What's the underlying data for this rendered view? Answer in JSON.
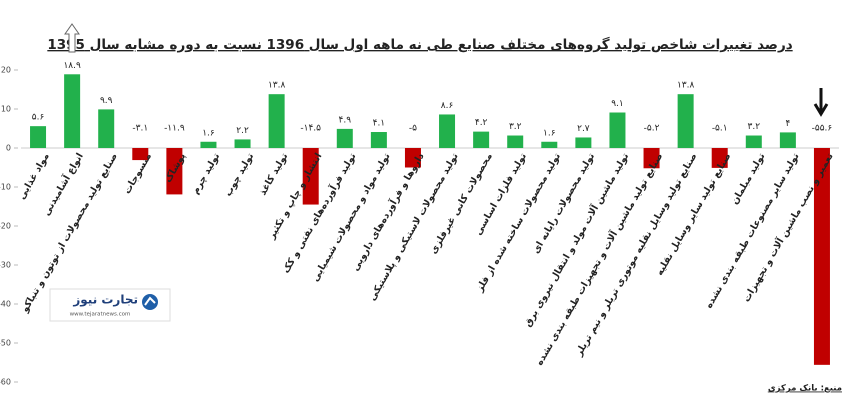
{
  "chart_data": {
    "type": "bar",
    "title": "درصد تغییرات شاخص تولید گروه‌های مختلف صنایع طی نه ماهه اول سال 1396 نسبت به دوره مشابه سال 1395",
    "categories": [
      "مواد غذایی",
      "انواع آشامیدنی",
      "صنایع تولید محصولات از توتون و تنباکو",
      "منسوجات",
      "پوشاک",
      "تولید چرم",
      "تولید چوب",
      "تولید کاغذ",
      "انتشار و چاپ و تکثیر",
      "تولید فرآورده‌های نفتی و کک",
      "تولید مواد و محصولات شیمیایی",
      "داروها و فرآورده‌های دارویی",
      "تولید محصولات لاستیکی و پلاستیکی",
      "محصولات کانی غیرفلزی",
      "تولید فلزات اساسی",
      "تولید محصولات ساخته شده از فلز",
      "تولید محصولات رایانه ای",
      "تولید ماشین آلات مولد و انتقال نیروی برق",
      "صنایع تولید ماشین آلات و تجهیزات طبقه بندی نشده",
      "صنایع تولید وسایل نقلیه موتوری تریلر و نیم تریلر",
      "صنایع تولید سایر وسایل نقلیه",
      "تولید مبلمان",
      "تولید سایر مصنوعات طبقه بندی نشده",
      "تعمیر و نصب ماشین آلات و تجهیزات"
    ],
    "values": [
      5.6,
      18.9,
      9.9,
      -3.1,
      -11.9,
      1.6,
      2.2,
      13.8,
      -14.5,
      4.9,
      4.1,
      -5,
      8.6,
      4.2,
      3.2,
      1.6,
      2.7,
      9.1,
      -5.2,
      13.8,
      -5.1,
      3.2,
      4,
      -55.6
    ],
    "value_labels": [
      "۵.۶",
      "۱۸.۹",
      "۹.۹",
      "-۳.۱",
      "-۱۱.۹",
      "۱.۶",
      "۲.۲",
      "۱۳.۸",
      "-۱۴.۵",
      "۴.۹",
      "۴.۱",
      "-۵",
      "۸.۶",
      "۴.۲",
      "۳.۲",
      "۱.۶",
      "۲.۷",
      "۹.۱",
      "-۵.۲",
      "۱۳.۸",
      "-۵.۱",
      "۳.۲",
      "۴",
      "-۵۵.۶"
    ],
    "colors": [
      "#22b14c",
      "#22b14c",
      "#22b14c",
      "#c00000",
      "#c00000",
      "#22b14c",
      "#22b14c",
      "#22b14c",
      "#c00000",
      "#22b14c",
      "#22b14c",
      "#c00000",
      "#22b14c",
      "#22b14c",
      "#22b14c",
      "#22b14c",
      "#22b14c",
      "#22b14c",
      "#c00000",
      "#22b14c",
      "#c00000",
      "#22b14c",
      "#22b14c",
      "#c00000"
    ],
    "ylim": [
      -60,
      20
    ],
    "yticks": [
      20,
      10,
      0,
      -10,
      -20,
      -30,
      -40,
      -50,
      -60
    ],
    "grid": false
  },
  "source": "منبع: بانک مرکزی",
  "logo": {
    "name": "تجارت نیوز",
    "url": "www.tejaratnews.com"
  }
}
